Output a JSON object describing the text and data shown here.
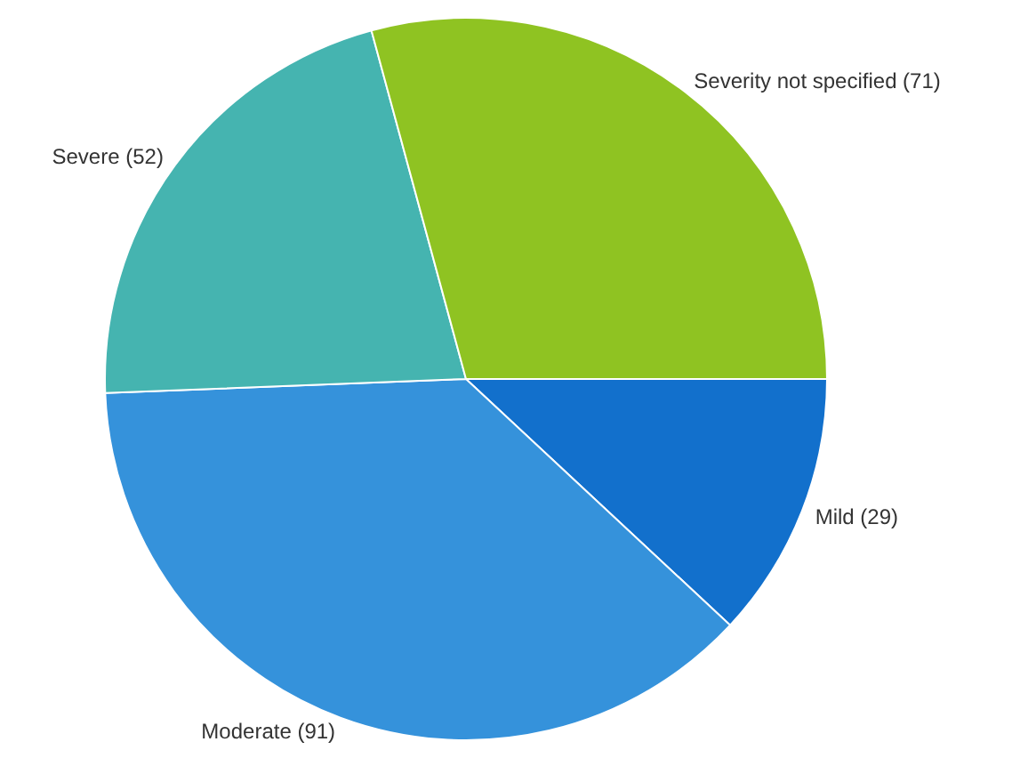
{
  "chart_data": {
    "type": "pie",
    "categories": [
      "Mild",
      "Moderate",
      "Severe",
      "Severity not specified"
    ],
    "values": [
      29,
      91,
      52,
      71
    ],
    "value_labels": [
      "(29)",
      "(91)",
      "(52)",
      "(71)"
    ],
    "colors": [
      "#1270cc",
      "#3592db",
      "#45b4b0",
      "#8fc322"
    ]
  }
}
